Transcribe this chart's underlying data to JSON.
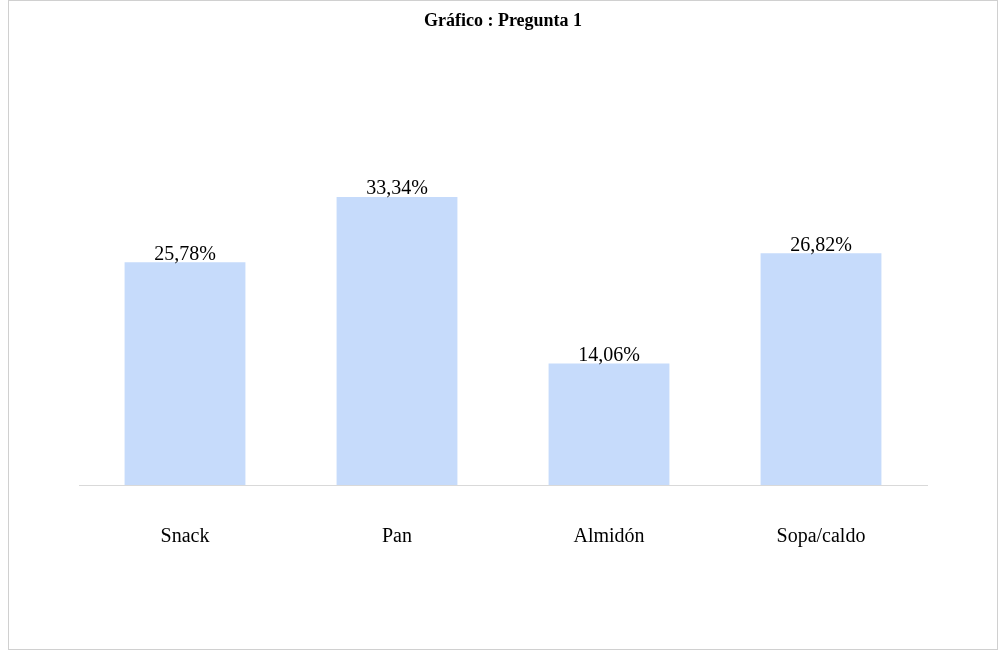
{
  "chart_data": {
    "type": "bar",
    "title": "Gráfico : Pregunta 1",
    "categories": [
      "Snack",
      "Pan",
      "Almidón",
      "Sopa/caldo"
    ],
    "values": [
      25.78,
      33.34,
      14.06,
      26.82
    ],
    "value_labels": [
      "25,78%",
      "33,34%",
      "14,06%",
      "26,82%"
    ],
    "color": "#c6dbfb",
    "grid": false,
    "legend": false
  }
}
